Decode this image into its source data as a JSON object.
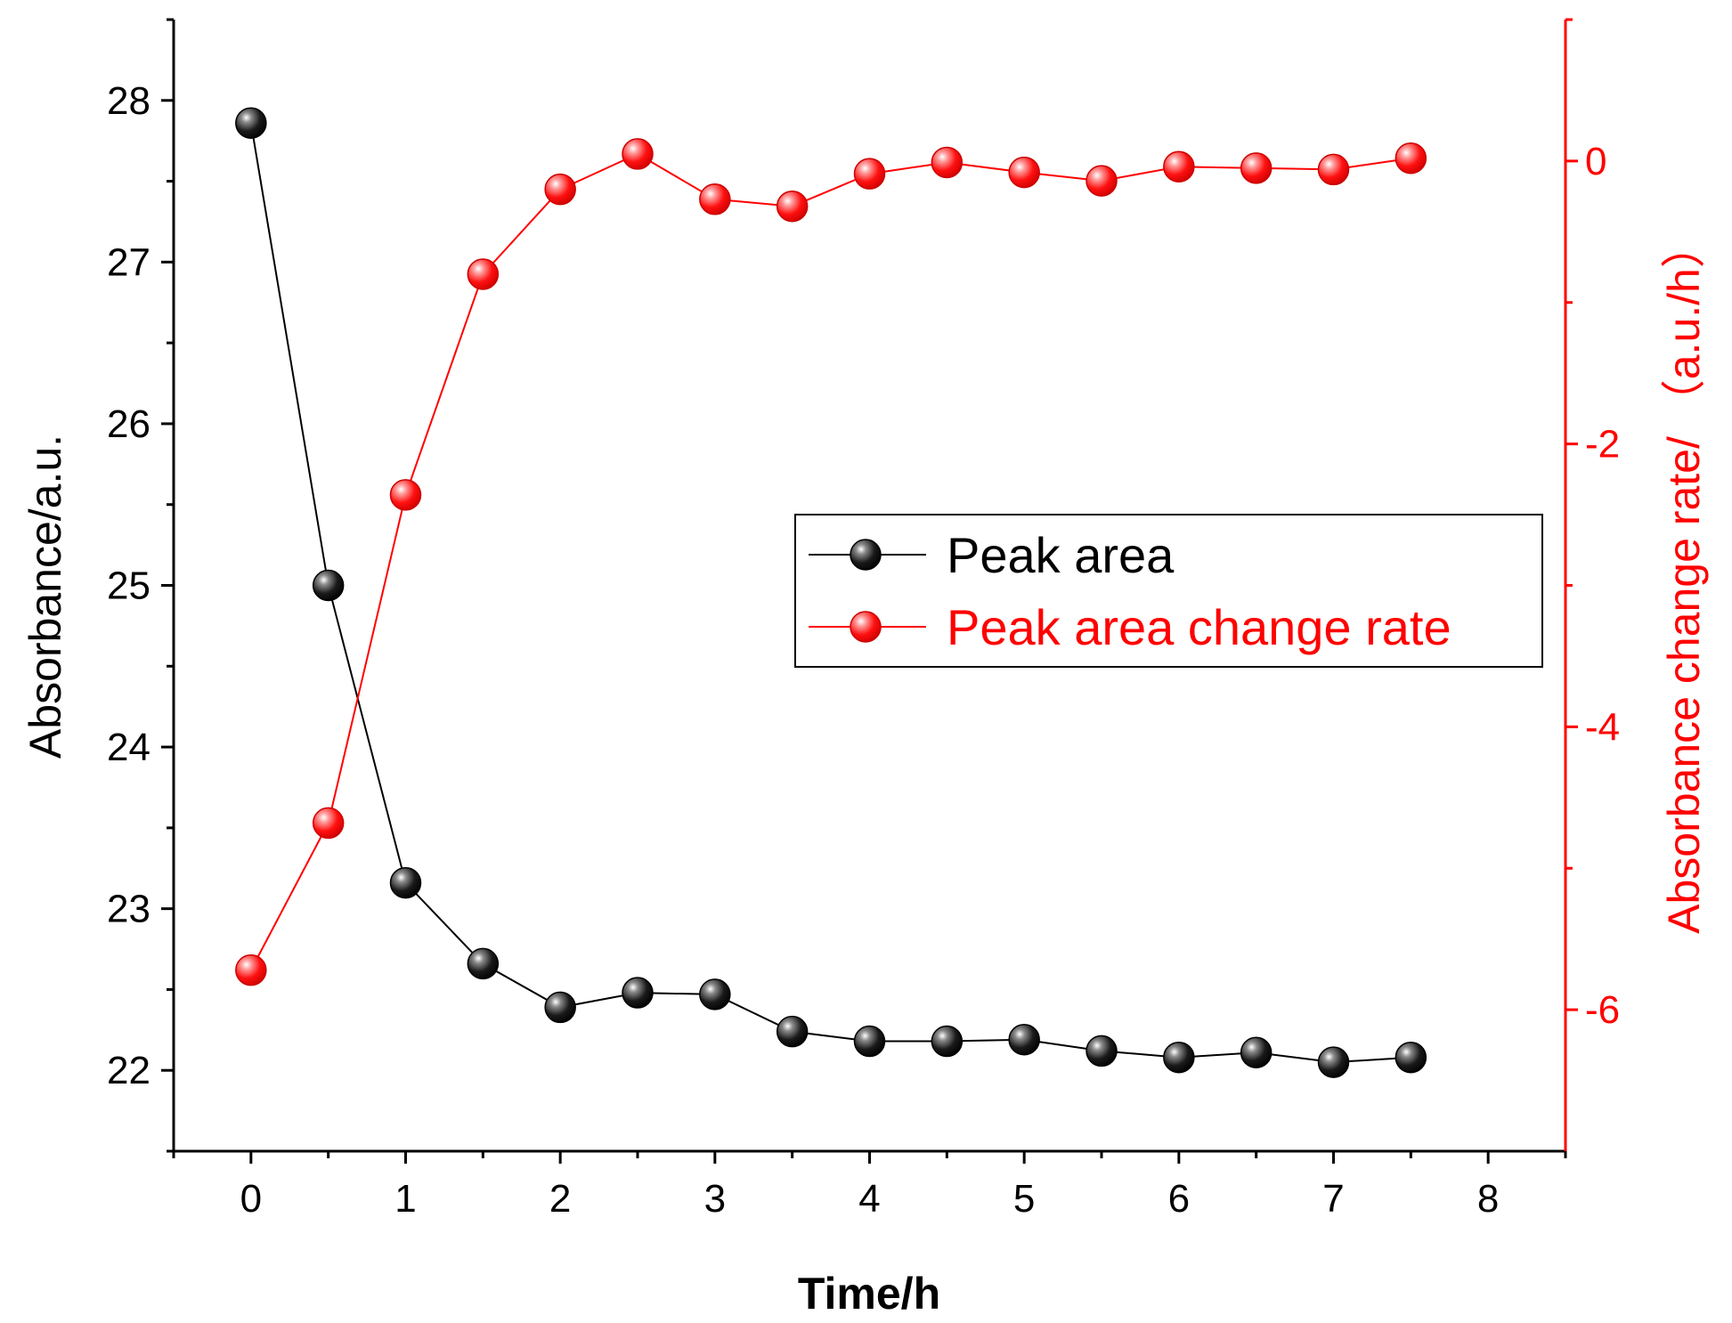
{
  "chart_data": {
    "type": "line",
    "title": "",
    "xlabel": "Time/h",
    "ylabel_left": "Absorbance/a.u.",
    "ylabel_right": "Absorbance change rate/ （a.u./h）",
    "xlim": [
      -0.5,
      8.5
    ],
    "ylim_left": [
      21.5,
      28.5
    ],
    "ylim_right": [
      -7,
      1
    ],
    "x_ticks": [
      0,
      1,
      2,
      3,
      4,
      5,
      6,
      7,
      8
    ],
    "x_tick_labels": [
      "0",
      "1",
      "2",
      "3",
      "4",
      "5",
      "6",
      "7",
      "8"
    ],
    "y_left_ticks": [
      22,
      23,
      24,
      25,
      26,
      27,
      28
    ],
    "y_left_tick_labels": [
      "22",
      "23",
      "24",
      "25",
      "26",
      "27",
      "28"
    ],
    "y_right_ticks": [
      0,
      -2,
      -4,
      -6
    ],
    "y_right_tick_labels": [
      "0",
      "-2",
      "-4",
      "-6"
    ],
    "grid": false,
    "legend_position": "center-right",
    "x": [
      0,
      0.5,
      1,
      1.5,
      2,
      2.5,
      3,
      3.5,
      4,
      4.5,
      5,
      5.5,
      6,
      6.5,
      7,
      7.5
    ],
    "series": [
      {
        "name": "Peak area",
        "axis": "left",
        "color": "#000000",
        "values": [
          27.86,
          25.0,
          23.16,
          22.66,
          22.39,
          22.48,
          22.47,
          22.24,
          22.18,
          22.18,
          22.19,
          22.12,
          22.08,
          22.11,
          22.05,
          22.08
        ]
      },
      {
        "name": "Peak area change rate",
        "axis": "right",
        "color": "#ff0000",
        "values": [
          -5.72,
          -4.68,
          -2.36,
          -0.8,
          -0.2,
          0.05,
          -0.27,
          -0.32,
          -0.09,
          -0.01,
          -0.08,
          -0.14,
          -0.04,
          -0.05,
          -0.06,
          0.02
        ]
      }
    ]
  }
}
